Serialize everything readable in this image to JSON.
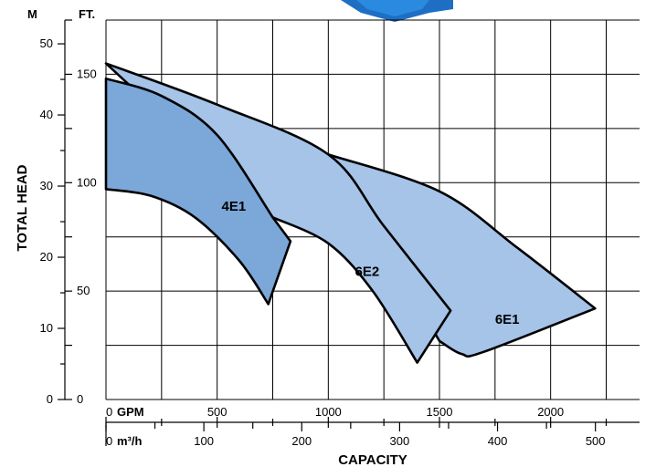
{
  "chart_data": {
    "type": "area",
    "title": "",
    "ylabel": "TOTAL HEAD",
    "xlabel": "CAPACITY",
    "y_units": {
      "meters_label": "M",
      "feet_label": "FT."
    },
    "x_units": {
      "gpm_label": "GPM",
      "m3h_label": "m³/h"
    },
    "y_meter_ticks": [
      "0",
      "10",
      "20",
      "30",
      "40",
      "50"
    ],
    "y_feet_ticks": [
      "0",
      "50",
      "100",
      "150"
    ],
    "x_gpm_ticks": [
      "0",
      "500",
      "1000",
      "1500",
      "2000"
    ],
    "x_m3h_ticks": [
      "0",
      "100",
      "200",
      "300",
      "400",
      "500"
    ],
    "xlim_gpm": [
      0,
      2400
    ],
    "ylim_ft": [
      0,
      175
    ],
    "grid": true,
    "series": [
      {
        "name": "4E1",
        "color": "#7ba7d9",
        "upper": [
          [
            0,
            148
          ],
          [
            250,
            140
          ],
          [
            500,
            122
          ],
          [
            750,
            84
          ]
        ],
        "lower": [
          [
            0,
            97
          ],
          [
            200,
            94
          ],
          [
            400,
            84
          ],
          [
            600,
            64
          ],
          [
            730,
            44
          ]
        ],
        "tip": [
          830,
          73
        ]
      },
      {
        "name": "6E2",
        "color": "#a6c3e8",
        "upper": [
          [
            0,
            155
          ],
          [
            500,
            136
          ],
          [
            1000,
            113
          ],
          [
            1250,
            80
          ],
          [
            1550,
            41
          ]
        ],
        "lower": [
          [
            750,
            84
          ],
          [
            1000,
            72
          ],
          [
            1200,
            50
          ],
          [
            1400,
            17
          ]
        ],
        "tip": [
          1550,
          41
        ]
      },
      {
        "name": "6E1",
        "color": "#a6c3e8",
        "upper": [
          [
            1000,
            113
          ],
          [
            1500,
            96
          ],
          [
            1850,
            70
          ],
          [
            2200,
            42
          ]
        ],
        "lower": [
          [
            1500,
            27
          ],
          [
            1600,
            21
          ],
          [
            1700,
            22
          ],
          [
            2200,
            42
          ]
        ],
        "tip": [
          2200,
          42
        ]
      }
    ]
  }
}
